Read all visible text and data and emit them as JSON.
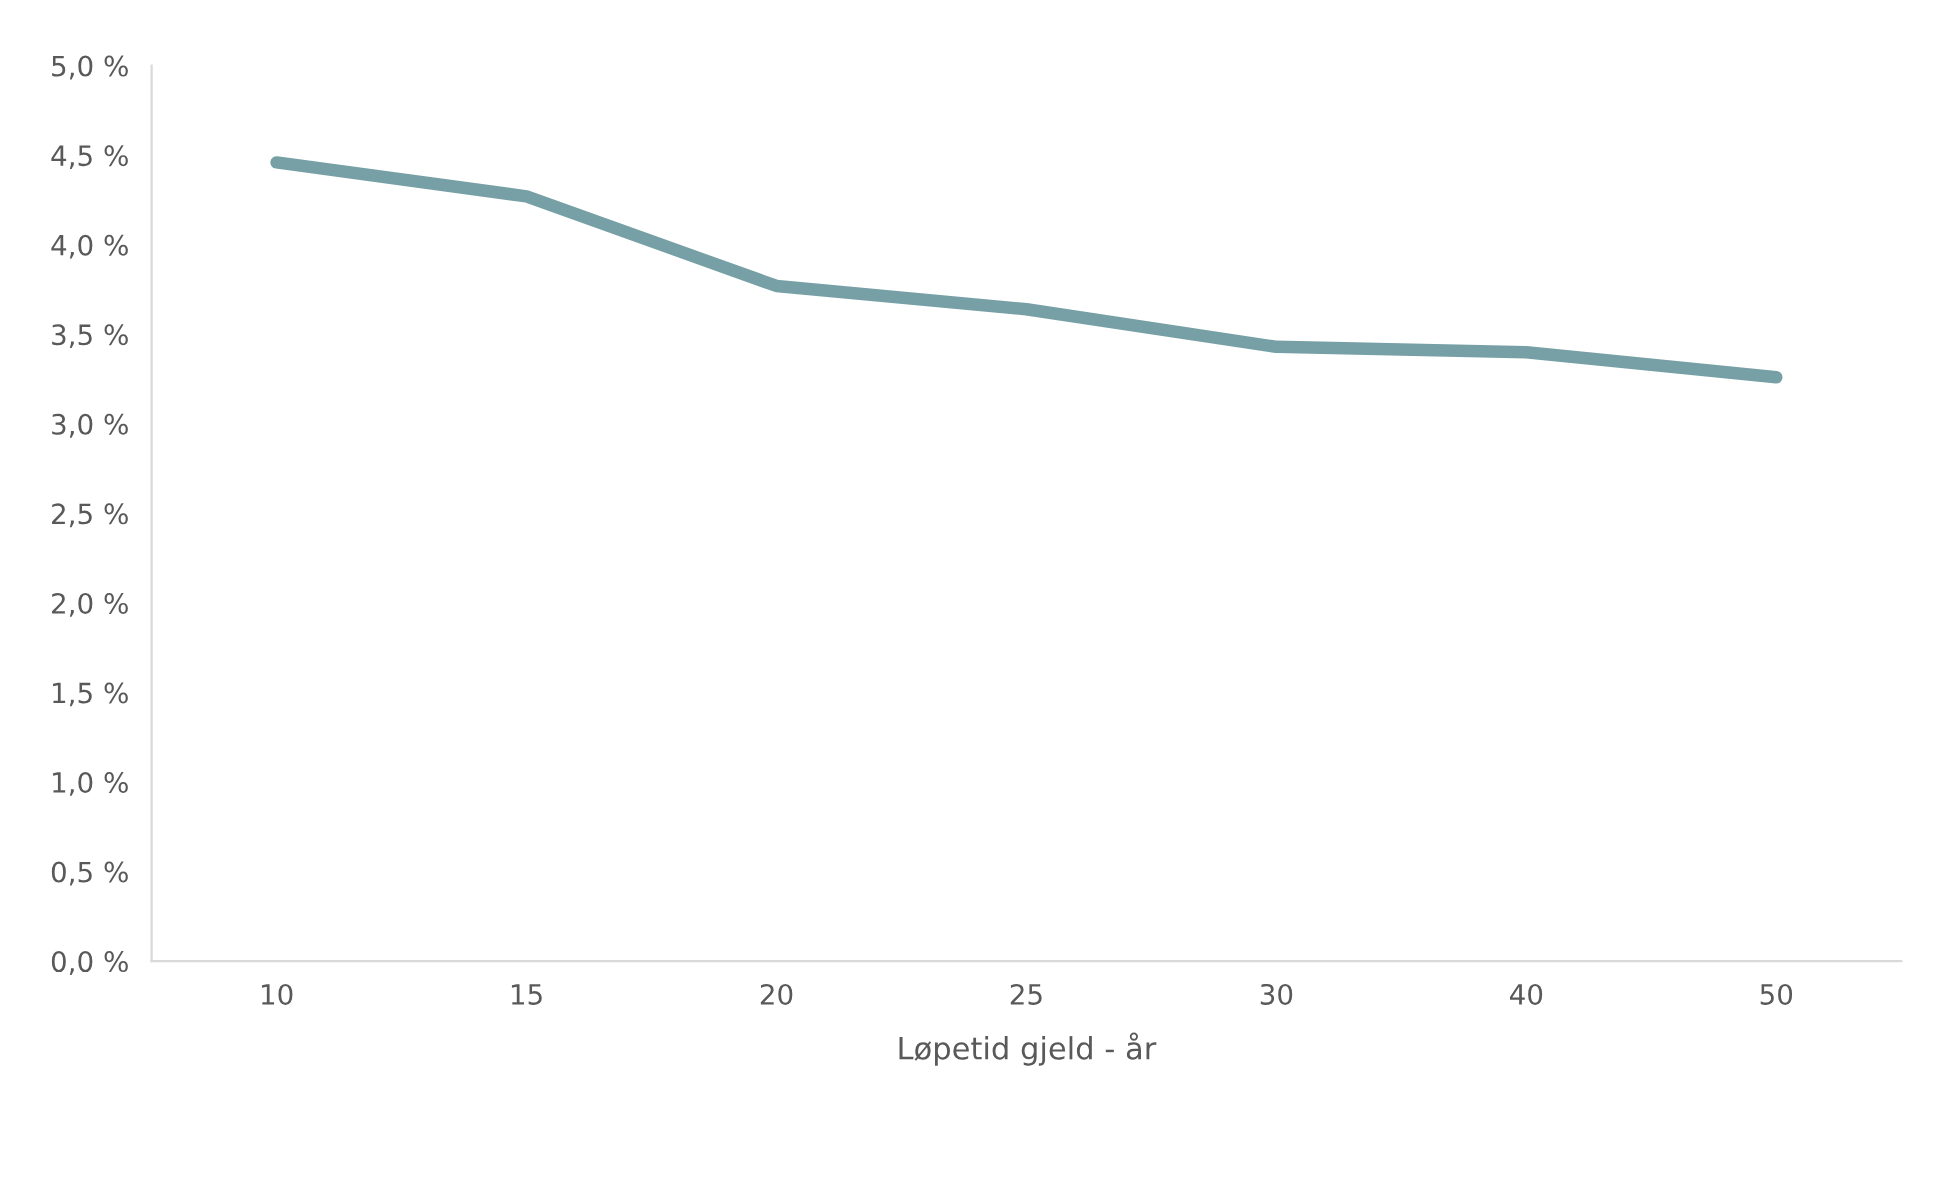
{
  "chart_data": {
    "type": "line",
    "xlabel": "Løpetid gjeld - år",
    "categories": [
      "10",
      "15",
      "20",
      "25",
      "30",
      "40",
      "50"
    ],
    "series": [
      {
        "color": "#76a0a5",
        "values": [
          4.46,
          4.27,
          3.77,
          3.64,
          3.43,
          3.4,
          3.26
        ]
      }
    ],
    "ylim": [
      0,
      5
    ],
    "yticks": [
      {
        "value": 0,
        "label": "0,0 %"
      },
      {
        "value": 0.5,
        "label": "0,5 %"
      },
      {
        "value": 1,
        "label": "1,0 %"
      },
      {
        "value": 1.5,
        "label": "1,5 %"
      },
      {
        "value": 2,
        "label": "2,0 %"
      },
      {
        "value": 2.5,
        "label": "2,5 %"
      },
      {
        "value": 3,
        "label": "3,0 %"
      },
      {
        "value": 3.5,
        "label": "3,5 %"
      },
      {
        "value": 4,
        "label": "4,0 %"
      },
      {
        "value": 4.5,
        "label": "4,5 %"
      },
      {
        "value": 5,
        "label": "5,0 %"
      }
    ],
    "grid": false,
    "marker": "none",
    "line_style": "solid"
  }
}
